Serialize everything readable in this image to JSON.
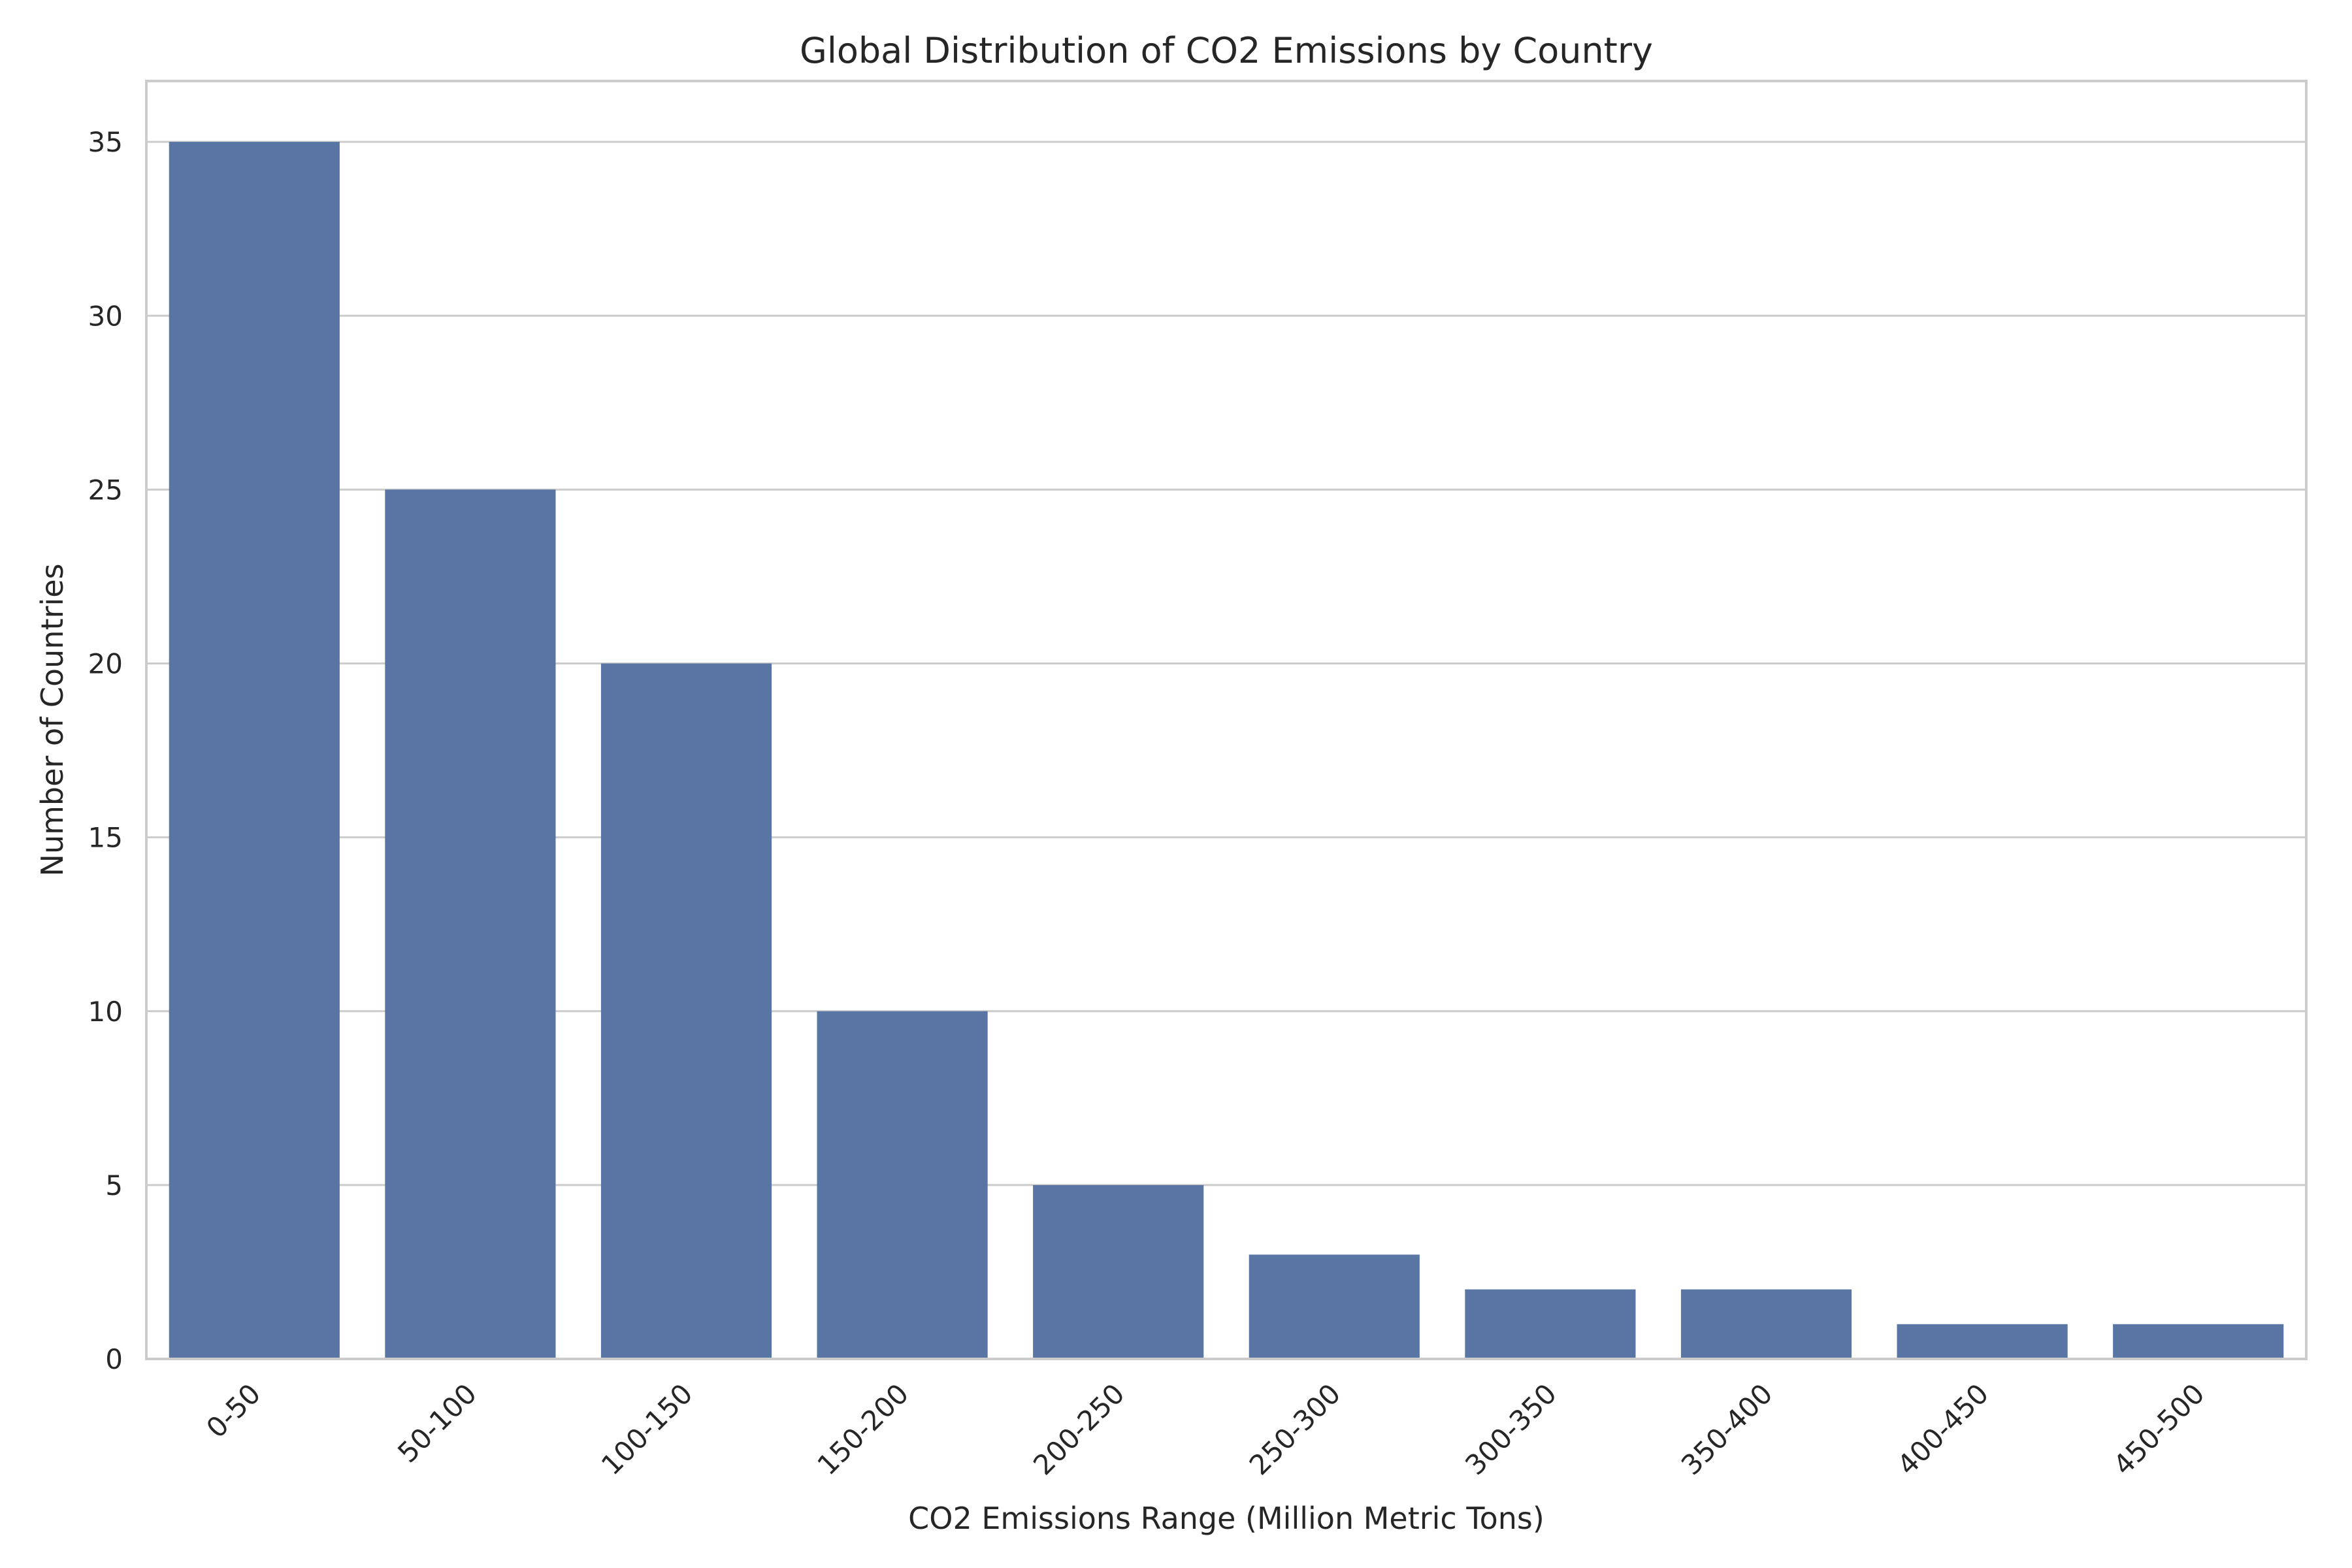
{
  "chart_data": {
    "type": "bar",
    "title": "Global Distribution of CO2 Emissions by Country",
    "xlabel": "CO2 Emissions Range (Million Metric Tons)",
    "ylabel": "Number of Countries",
    "categories": [
      "0-50",
      "50-100",
      "100-150",
      "150-200",
      "200-250",
      "250-300",
      "300-350",
      "350-400",
      "400-450",
      "450-500"
    ],
    "values": [
      35,
      25,
      20,
      10,
      5,
      3,
      2,
      2,
      1,
      1
    ],
    "ylim": [
      0,
      36.75
    ],
    "yticks": [
      0,
      5,
      10,
      15,
      20,
      25,
      30,
      35
    ],
    "grid": true,
    "bar_color": "#5875a4"
  }
}
